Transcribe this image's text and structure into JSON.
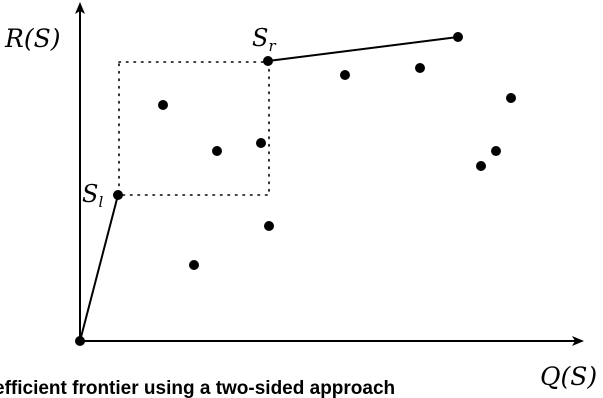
{
  "figure": {
    "caption": "efficient frontier using a two-sided approach",
    "y_axis_label": "R(S)",
    "x_axis_label": "Q(S)",
    "left_point_label": "S",
    "left_point_subscript": "l",
    "right_point_label": "S",
    "right_point_subscript": "r"
  },
  "colors": {
    "ink": "#000000",
    "background": "#ffffff"
  }
}
